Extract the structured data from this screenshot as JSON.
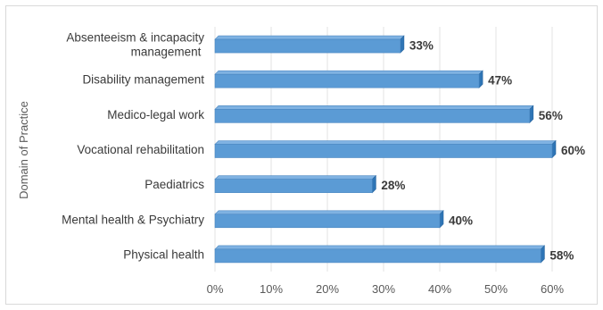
{
  "chart_data": {
    "type": "bar",
    "orientation": "horizontal",
    "ylabel": "Domain of Practice",
    "xlabel": "",
    "xlim": [
      0,
      60
    ],
    "x_ticks": [
      "0%",
      "10%",
      "20%",
      "30%",
      "40%",
      "50%",
      "60%"
    ],
    "x_tick_values": [
      0,
      10,
      20,
      30,
      40,
      50,
      60
    ],
    "categories": [
      [
        "Absenteeism & incapacity",
        "management"
      ],
      [
        "Disability management"
      ],
      [
        "Medico-legal work"
      ],
      [
        "Vocational rehabilitation"
      ],
      [
        "Paediatrics"
      ],
      [
        "Mental health & Psychiatry"
      ],
      [
        "Physical health"
      ]
    ],
    "values": [
      33,
      47,
      56,
      60,
      28,
      40,
      58
    ],
    "data_labels": [
      "33%",
      "47%",
      "56%",
      "60%",
      "28%",
      "40%",
      "58%"
    ],
    "bar_color": "#5b9bd5",
    "bar_top_color": "#7fb2e2",
    "bar_end_color": "#2e75b6",
    "grid": true,
    "legend": "none"
  }
}
